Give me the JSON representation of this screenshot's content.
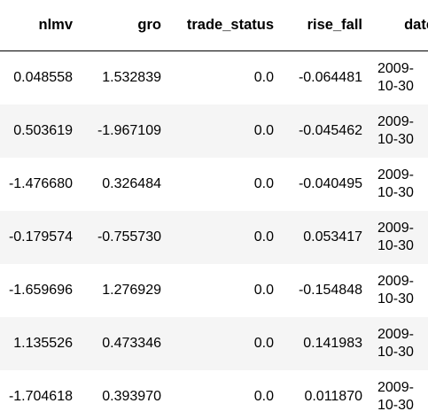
{
  "table": {
    "columns": [
      "nlmv",
      "gro",
      "trade_status",
      "rise_fall",
      "date"
    ],
    "rows": [
      [
        "0.048558",
        "1.532839",
        "0.0",
        "-0.064481",
        "2009-10-30"
      ],
      [
        "0.503619",
        "-1.967109",
        "0.0",
        "-0.045462",
        "2009-10-30"
      ],
      [
        "-1.476680",
        "0.326484",
        "0.0",
        "-0.040495",
        "2009-10-30"
      ],
      [
        "-0.179574",
        "-0.755730",
        "0.0",
        "0.053417",
        "2009-10-30"
      ],
      [
        "-1.659696",
        "1.276929",
        "0.0",
        "-0.154848",
        "2009-10-30"
      ],
      [
        "1.135526",
        "0.473346",
        "0.0",
        "0.141983",
        "2009-10-30"
      ],
      [
        "-1.704618",
        "0.393970",
        "0.0",
        "0.011870",
        "2009-10-30"
      ]
    ]
  },
  "colors": {
    "stripe": "#f5f5f5",
    "header_border": "#000000",
    "text": "#000000"
  }
}
